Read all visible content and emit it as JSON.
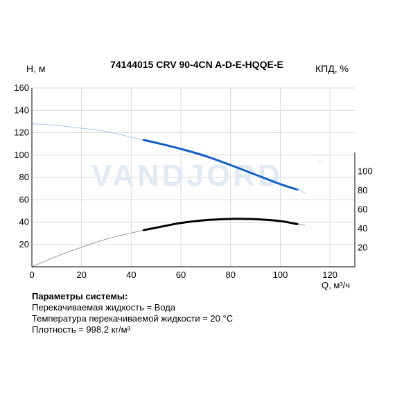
{
  "chart_data": {
    "type": "line",
    "title": "74144015 CRV 90-4CN A-D-E-HQQE-E",
    "xlabel": "Q, м³/ч",
    "ylabel_left": "H, м",
    "ylabel_right": "КПД, %",
    "xlim": [
      0,
      130
    ],
    "ylim_left": [
      0,
      160
    ],
    "ylim_right": [
      0,
      120
    ],
    "x_ticks": [
      "0",
      "20",
      "40",
      "60",
      "80",
      "100",
      "120"
    ],
    "y_ticks_left": [
      "20",
      "40",
      "60",
      "80",
      "100",
      "120",
      "140",
      "160"
    ],
    "y_ticks_right": [
      "20",
      "40",
      "60",
      "80",
      "100"
    ],
    "grid": true,
    "watermark": "VANDJORD",
    "series": [
      {
        "color": "#a9c4e6",
        "axis": "left",
        "style": "thin",
        "x": [
          0,
          10,
          20,
          30,
          40,
          45
        ],
        "y": [
          128,
          126.5,
          124,
          121,
          116,
          113.5
        ]
      },
      {
        "color": "#1560c8",
        "axis": "left",
        "style": "thick",
        "x": [
          45,
          50,
          60,
          70,
          80,
          90,
          100,
          107
        ],
        "y": [
          113.5,
          111,
          105.5,
          99,
          91,
          82.5,
          74,
          69
        ]
      },
      {
        "color": "#a9c4e6",
        "axis": "left",
        "style": "thin",
        "x": [
          107,
          110
        ],
        "y": [
          69,
          66
        ]
      },
      {
        "color": "#9a9a9a",
        "axis": "right",
        "style": "thin",
        "x": [
          0,
          5,
          10,
          15,
          20,
          25,
          30,
          35,
          40,
          45
        ],
        "y": [
          0,
          5.5,
          11,
          16,
          20.5,
          25,
          29,
          32.5,
          35.5,
          38.5
        ]
      },
      {
        "color": "#000000",
        "axis": "right",
        "style": "thick",
        "x": [
          45,
          50,
          60,
          70,
          80,
          85,
          90,
          100,
          107
        ],
        "y": [
          38.5,
          41,
          46,
          49,
          50.3,
          50.3,
          50,
          48,
          44.7
        ]
      },
      {
        "color": "#9a9a9a",
        "axis": "right",
        "style": "thin",
        "x": [
          107,
          110
        ],
        "y": [
          44.7,
          43.5
        ]
      }
    ]
  },
  "params": {
    "title": "Параметры системы:",
    "lines": [
      "Перекачиваемая жидкость = Вода",
      "Температура перекачиваемой жидкости = 20 °C",
      "Плотность = 998.2 кг/м³"
    ]
  }
}
